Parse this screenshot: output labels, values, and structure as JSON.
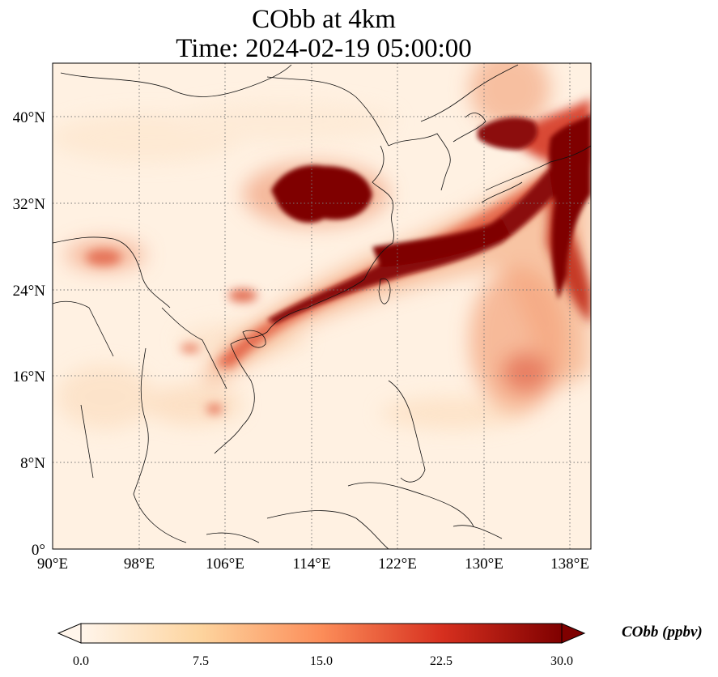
{
  "title_line1": "CObb at 4km",
  "title_line2": "Time: 2024-02-19 05:00:00",
  "map": {
    "lon_range": [
      90,
      140
    ],
    "lat_range": [
      0,
      45
    ],
    "lon_ticks": [
      "90°E",
      "98°E",
      "106°E",
      "114°E",
      "122°E",
      "130°E",
      "138°E"
    ],
    "lat_ticks": [
      "0°",
      "8°N",
      "16°N",
      "24°N",
      "32°N",
      "40°N"
    ],
    "lon_tick_values": [
      90,
      98,
      106,
      114,
      122,
      130,
      138
    ],
    "lat_tick_values": [
      0,
      8,
      16,
      24,
      32,
      40
    ],
    "gridlines": "dotted"
  },
  "colorbar": {
    "label": "CObb (ppbv)",
    "ticks": [
      "0.0",
      "7.5",
      "15.0",
      "22.5",
      "30.0"
    ],
    "tick_values": [
      0,
      7.5,
      15,
      22.5,
      30
    ],
    "range": [
      0,
      30
    ],
    "extend": "both",
    "colormap": [
      "#fff5eb",
      "#fdd0a2",
      "#fd8d3c",
      "#d94801",
      "#7f2704"
    ]
  },
  "colors": {
    "low": "#fff1e0",
    "mid": "#f4a582",
    "high": "#d6442c",
    "max": "#7f0000"
  }
}
